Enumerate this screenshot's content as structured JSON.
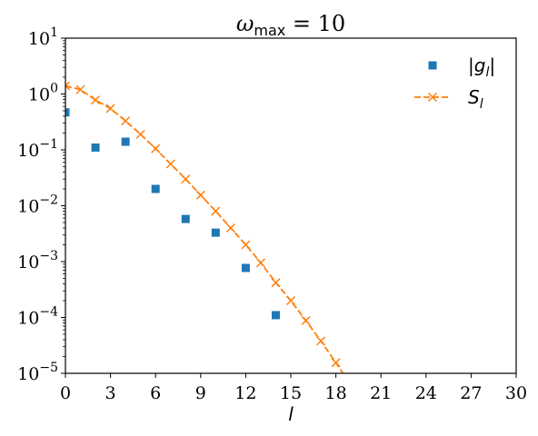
{
  "chart_data": {
    "type": "scatter",
    "title": {
      "prefix": "ω",
      "sub": "max",
      "suffix": " = 10"
    },
    "xlabel": "l",
    "ylabel": "",
    "xlim": [
      0,
      30
    ],
    "ylim": [
      1e-05,
      10
    ],
    "yscale": "log",
    "xticks": [
      0,
      3,
      6,
      9,
      12,
      15,
      18,
      21,
      24,
      27,
      30
    ],
    "yticks": [
      {
        "value": 1e-05,
        "base": "10",
        "exp": "−5"
      },
      {
        "value": 0.0001,
        "base": "10",
        "exp": "−4"
      },
      {
        "value": 0.001,
        "base": "10",
        "exp": "−3"
      },
      {
        "value": 0.01,
        "base": "10",
        "exp": "−2"
      },
      {
        "value": 0.1,
        "base": "10",
        "exp": "−1"
      },
      {
        "value": 1,
        "base": "10",
        "exp": "0"
      },
      {
        "value": 10,
        "base": "10",
        "exp": "1"
      }
    ],
    "grid": false,
    "legend_position": "top-right",
    "series": [
      {
        "name": "|g_l|",
        "legend": {
          "pre": "|g",
          "sub": "l",
          "post": "|"
        },
        "style": "markers",
        "marker": "square",
        "color": "#1f77b4",
        "x": [
          0,
          2,
          4,
          6,
          8,
          10,
          12,
          14
        ],
        "y": [
          0.47,
          0.11,
          0.14,
          0.02,
          0.0058,
          0.0033,
          0.00077,
          0.00011
        ]
      },
      {
        "name": "S_l",
        "legend": {
          "pre": "S",
          "sub": "l",
          "post": ""
        },
        "style": "dashed-line-x-markers",
        "marker": "x",
        "color": "#ff7f0e",
        "x": [
          0,
          1,
          2,
          3,
          4,
          5,
          6,
          7,
          8,
          9,
          10,
          11,
          12,
          13,
          14,
          15,
          16,
          17,
          18,
          19
        ],
        "y": [
          1.4,
          1.2,
          0.78,
          0.55,
          0.33,
          0.19,
          0.105,
          0.056,
          0.03,
          0.0155,
          0.008,
          0.004,
          0.002,
          0.00095,
          0.00042,
          0.0002,
          8.8e-05,
          3.8e-05,
          1.55e-05,
          6.2e-06
        ]
      }
    ]
  }
}
